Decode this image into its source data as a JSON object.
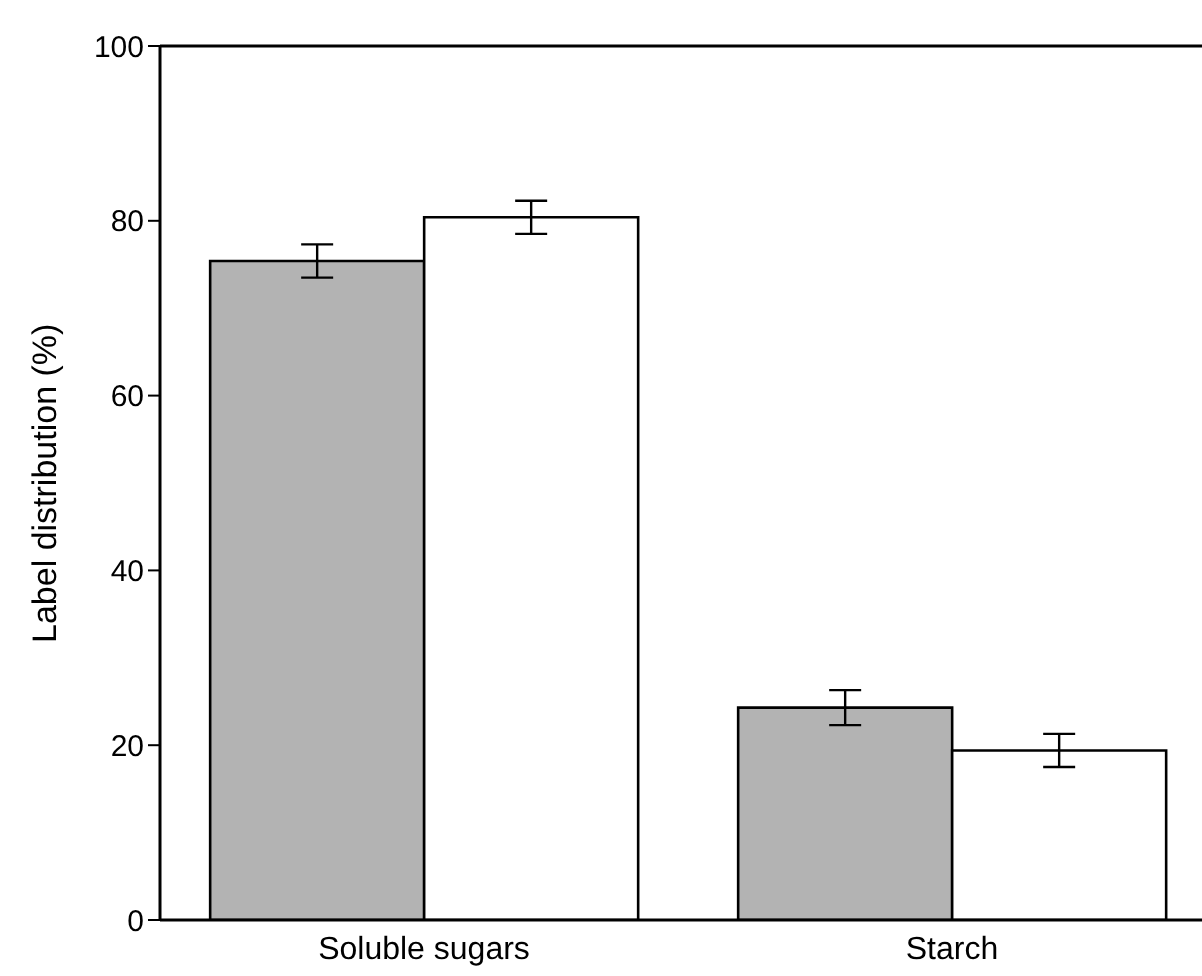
{
  "chart_data": {
    "type": "bar",
    "ylabel": "Label distribution (%)",
    "categories": [
      "Soluble sugars",
      "Starch"
    ],
    "series": [
      {
        "color": "#b3b3b3",
        "values": [
          75.4,
          24.3
        ],
        "errors": [
          1.9,
          2.0
        ]
      },
      {
        "color": "#ffffff",
        "values": [
          80.4,
          19.4
        ],
        "errors": [
          1.9,
          1.9
        ]
      }
    ],
    "ylim": [
      0,
      100
    ],
    "yticks": [
      0,
      20,
      40,
      60,
      80,
      100
    ],
    "grid": false,
    "legend": false
  }
}
